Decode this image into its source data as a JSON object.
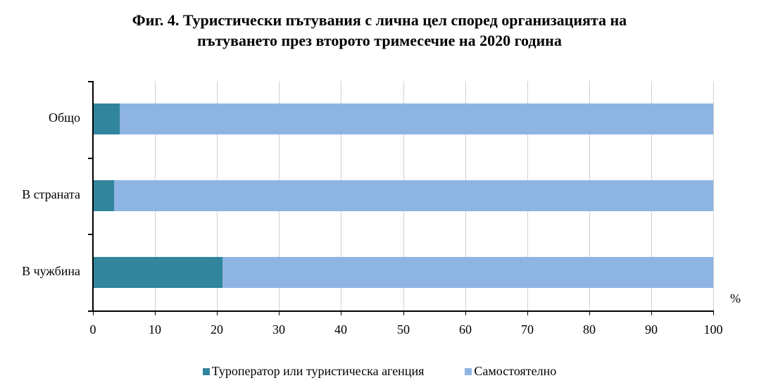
{
  "title_line1": "Фиг. 4. Туристически пътувания с лична цел според организацията на",
  "title_line2": "пътуването през второто тримесечие на 2020 година",
  "unit_label": "%",
  "colors": {
    "tour_operator": "#31859C",
    "independent": "#8EB4E3"
  },
  "legend": [
    {
      "label": "Туроператор или  туристическа агенция",
      "color": "#31859C"
    },
    {
      "label": "Самостоятелно",
      "color": "#8EB4E3"
    }
  ],
  "x_ticks": [
    "0",
    "10",
    "20",
    "30",
    "40",
    "50",
    "60",
    "70",
    "80",
    "90",
    "100"
  ],
  "categories": [
    "Общо",
    "В страната",
    "В чужбина"
  ],
  "chart_data": {
    "type": "bar",
    "orientation": "horizontal",
    "stacked": true,
    "title": "Фиг. 4. Туристически пътувания с лична цел според организацията на пътуването през второто тримесечие на 2020 година",
    "categories": [
      "Общо",
      "В страната",
      "В чужбина"
    ],
    "series": [
      {
        "name": "Туроператор или туристическа агенция",
        "values": [
          4.3,
          3.4,
          20.9
        ],
        "color": "#31859C"
      },
      {
        "name": "Самостоятелно",
        "values": [
          95.7,
          96.6,
          79.1
        ],
        "color": "#8EB4E3"
      }
    ],
    "xlabel": "%",
    "ylabel": "",
    "xlim": [
      0,
      100
    ],
    "x_ticks": [
      0,
      10,
      20,
      30,
      40,
      50,
      60,
      70,
      80,
      90,
      100
    ],
    "grid": "vertical",
    "legend_position": "bottom"
  }
}
